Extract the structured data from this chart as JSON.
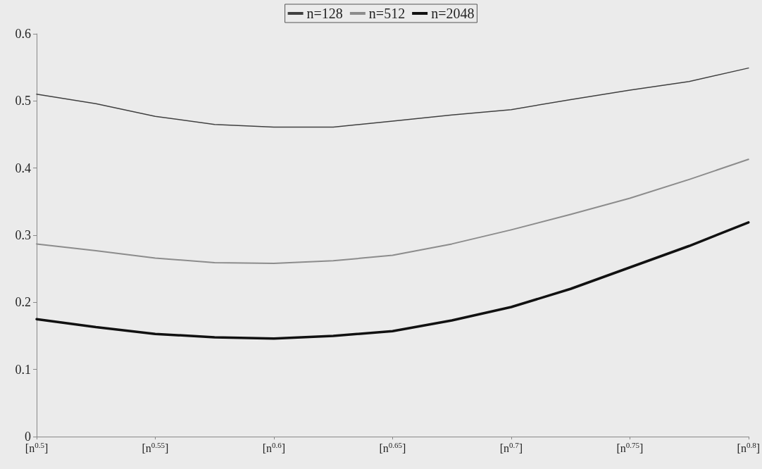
{
  "chart_data": {
    "type": "line",
    "x": [
      0.5,
      0.525,
      0.55,
      0.575,
      0.6,
      0.625,
      0.65,
      0.675,
      0.7,
      0.725,
      0.75,
      0.775,
      0.8
    ],
    "series": [
      {
        "name": "n=128",
        "color": "#404040",
        "values": [
          0.51,
          0.496,
          0.477,
          0.465,
          0.461,
          0.461,
          0.47,
          0.479,
          0.487,
          0.502,
          0.516,
          0.529,
          0.549
        ]
      },
      {
        "name": "n=512",
        "color": "#8c8c8c",
        "values": [
          0.287,
          0.277,
          0.266,
          0.259,
          0.258,
          0.262,
          0.27,
          0.287,
          0.308,
          0.331,
          0.355,
          0.383,
          0.413
        ]
      },
      {
        "name": "n=2048",
        "color": "#111111",
        "values": [
          0.175,
          0.163,
          0.153,
          0.148,
          0.146,
          0.15,
          0.157,
          0.173,
          0.193,
          0.22,
          0.252,
          0.284,
          0.319
        ]
      }
    ],
    "xlim": [
      0.5,
      0.8
    ],
    "xticks": [
      {
        "value": 0.5,
        "label": "[n$^{0.5}$]"
      },
      {
        "value": 0.55,
        "label": "[n$^{0.55}$]"
      },
      {
        "value": 0.6,
        "label": "[n$^{0.6}$]"
      },
      {
        "value": 0.65,
        "label": "[n$^{0.65}$]"
      },
      {
        "value": 0.7,
        "label": "[n$^{0.7}$]"
      },
      {
        "value": 0.75,
        "label": "[n$^{0.75}$]"
      },
      {
        "value": 0.8,
        "label": "[n$^{0.8}$]"
      }
    ],
    "ylim": [
      0,
      0.6
    ],
    "yticks": [
      0,
      0.1,
      0.2,
      0.3,
      0.4,
      0.5,
      0.6
    ],
    "grid": false,
    "legend": "top",
    "marker": "none",
    "line_style": "solid"
  }
}
